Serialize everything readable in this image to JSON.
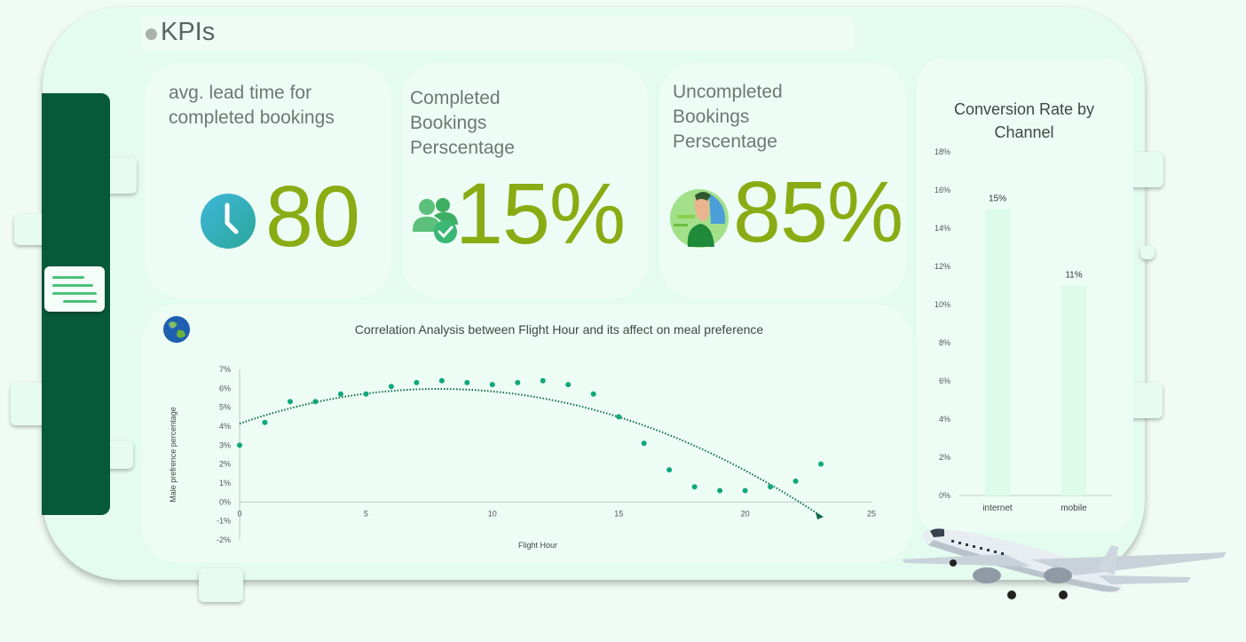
{
  "header": {
    "title": "KPIs"
  },
  "kpis": {
    "lead_time": {
      "label": "avg. lead time for completed bookings",
      "value": "80"
    },
    "completed": {
      "label": "Completed Bookings Perscentage",
      "value": "15%"
    },
    "uncompleted": {
      "label": "Uncompleted Bookings Perscentage",
      "value": "85%"
    }
  },
  "colors": {
    "accent": "#8aab13",
    "sidebar": "#065a3a",
    "point": "#10a77a",
    "bar": "#dcfbea"
  },
  "icons": [
    "menu-icon",
    "clock-icon",
    "users-check-icon",
    "person-icon",
    "globe-icon",
    "airplane-icon"
  ],
  "chart_data": [
    {
      "type": "scatter",
      "title": "Correlation Analysis between Flight Hour and its affect on meal preference",
      "xlabel": "Flight Hour",
      "ylabel": "Male prefrence percentage",
      "xlim": [
        0,
        25
      ],
      "ylim": [
        -2,
        7
      ],
      "x_ticks": [
        "0",
        "5",
        "10",
        "15",
        "20",
        "25"
      ],
      "y_ticks": [
        "-2%",
        "-1%",
        "0%",
        "1%",
        "2%",
        "3%",
        "4%",
        "5%",
        "6%",
        "7%"
      ],
      "trendline": "polynomial (dotted)",
      "points": [
        [
          0,
          3.0
        ],
        [
          1,
          4.2
        ],
        [
          2,
          5.3
        ],
        [
          3,
          5.3
        ],
        [
          4,
          5.7
        ],
        [
          5,
          5.7
        ],
        [
          6,
          6.1
        ],
        [
          7,
          6.3
        ],
        [
          8,
          6.4
        ],
        [
          9,
          6.3
        ],
        [
          10,
          6.2
        ],
        [
          11,
          6.3
        ],
        [
          12,
          6.4
        ],
        [
          13,
          6.2
        ],
        [
          14,
          5.7
        ],
        [
          15,
          4.5
        ],
        [
          16,
          3.1
        ],
        [
          17,
          1.7
        ],
        [
          18,
          0.8
        ],
        [
          19,
          0.6
        ],
        [
          20,
          0.6
        ],
        [
          21,
          0.8
        ],
        [
          22,
          1.1
        ],
        [
          23,
          2.0
        ]
      ]
    },
    {
      "type": "bar",
      "title": "Conversion Rate by Channel",
      "categories": [
        "internet",
        "mobile"
      ],
      "values": [
        15,
        11
      ],
      "data_labels": [
        "15%",
        "11%"
      ],
      "ylim": [
        0,
        18
      ],
      "y_ticks": [
        "0%",
        "2%",
        "4%",
        "6%",
        "8%",
        "10%",
        "12%",
        "14%",
        "16%",
        "18%"
      ]
    }
  ]
}
